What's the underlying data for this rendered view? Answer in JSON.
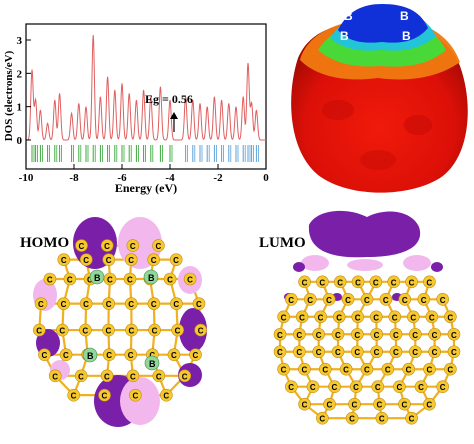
{
  "chart_data": {
    "type": "line",
    "xlabel": "Energy (eV)",
    "ylabel": "DOS (electrons/eV)",
    "xlim": [
      -10,
      0
    ],
    "ylim": [
      0,
      3.3
    ],
    "xticks": [
      -10,
      -8,
      -6,
      -4,
      -2,
      0
    ],
    "yticks": [
      0,
      1,
      2,
      3
    ],
    "annotation": "Eg = 0.56",
    "curve_color": "#e06060",
    "peaks": [
      {
        "x": -9.75,
        "y": 2.1
      },
      {
        "x": -9.6,
        "y": 1.2
      },
      {
        "x": -9.4,
        "y": 0.9
      },
      {
        "x": -9.1,
        "y": 0.5
      },
      {
        "x": -8.8,
        "y": 1.2
      },
      {
        "x": -8.6,
        "y": 1.4
      },
      {
        "x": -8.1,
        "y": 0.8
      },
      {
        "x": -7.8,
        "y": 1.1
      },
      {
        "x": -7.5,
        "y": 1.0
      },
      {
        "x": -7.2,
        "y": 3.15
      },
      {
        "x": -6.9,
        "y": 1.3
      },
      {
        "x": -6.6,
        "y": 1.9
      },
      {
        "x": -6.3,
        "y": 1.5
      },
      {
        "x": -6.0,
        "y": 1.7
      },
      {
        "x": -5.7,
        "y": 1.4
      },
      {
        "x": -5.4,
        "y": 1.2
      },
      {
        "x": -5.1,
        "y": 1.5
      },
      {
        "x": -4.8,
        "y": 1.3
      },
      {
        "x": -4.4,
        "y": 1.6
      },
      {
        "x": -4.0,
        "y": 1.2
      },
      {
        "x": -3.35,
        "y": 1.3
      },
      {
        "x": -3.05,
        "y": 1.2
      },
      {
        "x": -2.75,
        "y": 1.1
      },
      {
        "x": -2.45,
        "y": 1.0
      },
      {
        "x": -2.15,
        "y": 1.3
      },
      {
        "x": -1.85,
        "y": 1.2
      },
      {
        "x": -1.55,
        "y": 1.1
      },
      {
        "x": -1.25,
        "y": 1.0
      },
      {
        "x": -0.95,
        "y": 1.3
      },
      {
        "x": -0.75,
        "y": 2.3
      },
      {
        "x": -0.6,
        "y": 1.1
      },
      {
        "x": -0.4,
        "y": 0.9
      }
    ]
  },
  "esp_labels": [
    "B",
    "B",
    "B",
    "B"
  ],
  "homo": {
    "title": "HOMO",
    "boron_labels": [
      "B",
      "B",
      "B",
      "B"
    ],
    "carbon_label": "C"
  },
  "lumo": {
    "title": "LUMO",
    "carbon_label": "C"
  },
  "colors": {
    "bond": "#f0b020",
    "carbon": "#f6c830",
    "boron": "#8fd89a",
    "orbital_dark": "#7a1fa8",
    "orbital_light": "#f2b8ee",
    "esp_red": "#e01010",
    "esp_blue": "#1a30d0"
  }
}
